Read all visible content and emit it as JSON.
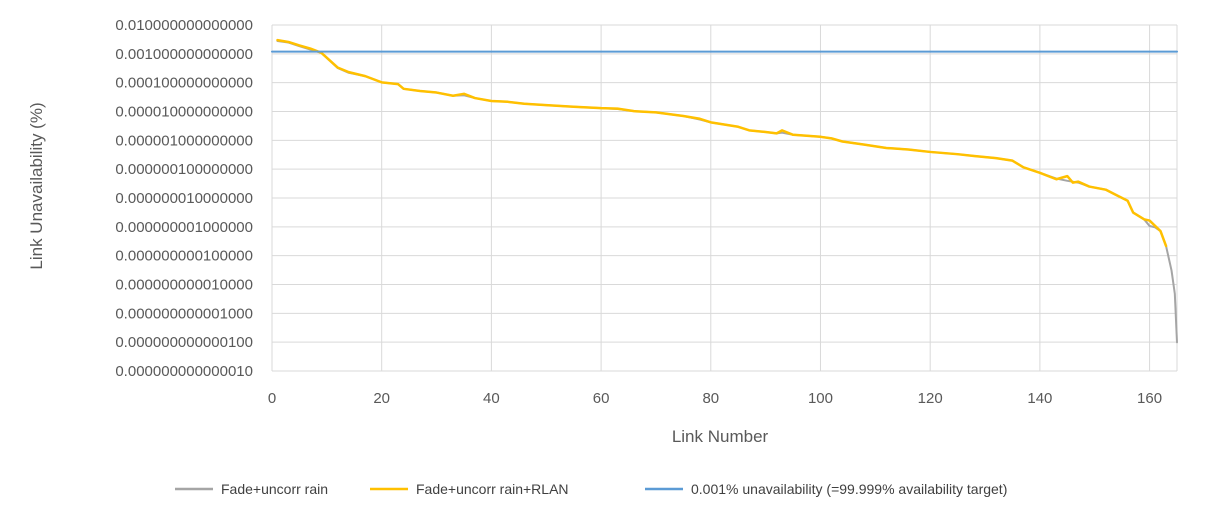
{
  "chart_data": {
    "type": "line",
    "title": "",
    "xlabel": "Link Number",
    "ylabel": "Link Unavailability (%)",
    "y_scale": "log",
    "xlim": [
      0,
      165
    ],
    "ylim": [
      1e-15,
      0.01
    ],
    "x_ticks": [
      "0",
      "20",
      "40",
      "60",
      "80",
      "100",
      "120",
      "140",
      "160"
    ],
    "y_ticks": [
      "0.010000000000000",
      "0.001000000000000",
      "0.000100000000000",
      "0.000010000000000",
      "0.000001000000000",
      "0.000000100000000",
      "0.000000010000000",
      "0.000000001000000",
      "0.000000000100000",
      "0.000000000010000",
      "0.000000000001000",
      "0.000000000000100",
      "0.000000000000010"
    ],
    "grid": true,
    "legend_position": "bottom",
    "series": [
      {
        "name": "Fade+uncorr rain",
        "color": "#a5a5a5",
        "points": [
          [
            1,
            0.0025
          ],
          [
            3,
            0.0022
          ],
          [
            5,
            0.0016
          ],
          [
            7,
            0.0012
          ],
          [
            9,
            0.0009
          ],
          [
            12,
            0.00024
          ],
          [
            14,
            0.00016
          ],
          [
            17,
            0.00012
          ],
          [
            20,
            7e-05
          ],
          [
            23,
            6e-05
          ],
          [
            24,
            4e-05
          ],
          [
            27,
            3.3e-05
          ],
          [
            30,
            2.9e-05
          ],
          [
            33,
            2.2e-05
          ],
          [
            35,
            2.3e-05
          ],
          [
            37,
            1.8e-05
          ],
          [
            40,
            1.4e-05
          ],
          [
            43,
            1.3e-05
          ],
          [
            46,
            1.1e-05
          ],
          [
            50,
            9.8e-06
          ],
          [
            55,
            8.5e-06
          ],
          [
            60,
            7.5e-06
          ],
          [
            63,
            7e-06
          ],
          [
            66,
            5.8e-06
          ],
          [
            70,
            5.2e-06
          ],
          [
            75,
            3.8e-06
          ],
          [
            78,
            2.8e-06
          ],
          [
            80,
            2.2e-06
          ],
          [
            85,
            1.5e-06
          ],
          [
            87,
            1.1e-06
          ],
          [
            90,
            9.5e-07
          ],
          [
            92,
            8.5e-07
          ],
          [
            93,
            9e-07
          ],
          [
            95,
            7.5e-07
          ],
          [
            100,
            6.3e-07
          ],
          [
            102,
            5.5e-07
          ],
          [
            104,
            4.2e-07
          ],
          [
            108,
            3.2e-07
          ],
          [
            112,
            2.4e-07
          ],
          [
            116,
            2.1e-07
          ],
          [
            120,
            1.7e-07
          ],
          [
            125,
            1.4e-07
          ],
          [
            128,
            1.2e-07
          ],
          [
            132,
            1e-07
          ],
          [
            135,
            8e-08
          ],
          [
            137,
            4.5e-08
          ],
          [
            140,
            2.8e-08
          ],
          [
            143,
            1.7e-08
          ],
          [
            145,
            1.4e-08
          ],
          [
            147,
            1.2e-08
          ],
          [
            149,
            8.5e-09
          ],
          [
            152,
            6.5e-09
          ],
          [
            154,
            4e-09
          ],
          [
            156,
            2.5e-09
          ],
          [
            157,
            9e-10
          ],
          [
            159,
            5e-10
          ],
          [
            160,
            2.8e-10
          ],
          [
            161,
            2.5e-10
          ],
          [
            162,
            1.8e-10
          ],
          [
            163,
            5e-11
          ],
          [
            164,
            6e-12
          ],
          [
            164.6,
            8e-13
          ],
          [
            165,
            1.2e-14
          ]
        ]
      },
      {
        "name": "Fade+uncorr rain+RLAN",
        "color": "#ffc000",
        "points": [
          [
            1,
            0.0027
          ],
          [
            3,
            0.0023
          ],
          [
            5,
            0.0017
          ],
          [
            7,
            0.0013
          ],
          [
            9,
            0.0009
          ],
          [
            12,
            0.00025
          ],
          [
            14,
            0.00017
          ],
          [
            17,
            0.00012
          ],
          [
            20,
            7e-05
          ],
          [
            23,
            6e-05
          ],
          [
            24,
            4e-05
          ],
          [
            27,
            3.3e-05
          ],
          [
            30,
            2.9e-05
          ],
          [
            33,
            2.2e-05
          ],
          [
            35,
            2.6e-05
          ],
          [
            37,
            1.8e-05
          ],
          [
            40,
            1.4e-05
          ],
          [
            43,
            1.3e-05
          ],
          [
            46,
            1.1e-05
          ],
          [
            50,
            9.8e-06
          ],
          [
            55,
            8.5e-06
          ],
          [
            60,
            7.5e-06
          ],
          [
            63,
            7.2e-06
          ],
          [
            66,
            5.8e-06
          ],
          [
            70,
            5.2e-06
          ],
          [
            75,
            3.8e-06
          ],
          [
            78,
            3e-06
          ],
          [
            80,
            2.2e-06
          ],
          [
            85,
            1.5e-06
          ],
          [
            87,
            1.1e-06
          ],
          [
            90,
            9.5e-07
          ],
          [
            92,
            8.5e-07
          ],
          [
            93,
            1.1e-06
          ],
          [
            95,
            7.5e-07
          ],
          [
            100,
            6.3e-07
          ],
          [
            102,
            5.5e-07
          ],
          [
            104,
            4.2e-07
          ],
          [
            108,
            3.2e-07
          ],
          [
            112,
            2.4e-07
          ],
          [
            116,
            2.1e-07
          ],
          [
            120,
            1.7e-07
          ],
          [
            125,
            1.4e-07
          ],
          [
            128,
            1.2e-07
          ],
          [
            132,
            1e-07
          ],
          [
            135,
            8e-08
          ],
          [
            137,
            4.5e-08
          ],
          [
            140,
            2.8e-08
          ],
          [
            143,
            1.6e-08
          ],
          [
            145,
            2.1e-08
          ],
          [
            146,
            1.2e-08
          ],
          [
            147,
            1.3e-08
          ],
          [
            149,
            8.5e-09
          ],
          [
            152,
            6.5e-09
          ],
          [
            154,
            4e-09
          ],
          [
            156,
            2.5e-09
          ],
          [
            157,
            9e-10
          ],
          [
            159,
            5e-10
          ],
          [
            160,
            4.5e-10
          ],
          [
            162,
            1.8e-10
          ],
          [
            163,
            5e-11
          ]
        ]
      },
      {
        "name": "0.001% unavailability (=99.999% availability target)",
        "color": "#5b9bd5",
        "points": [
          [
            0,
            0.001
          ],
          [
            165,
            0.001
          ]
        ]
      }
    ]
  }
}
